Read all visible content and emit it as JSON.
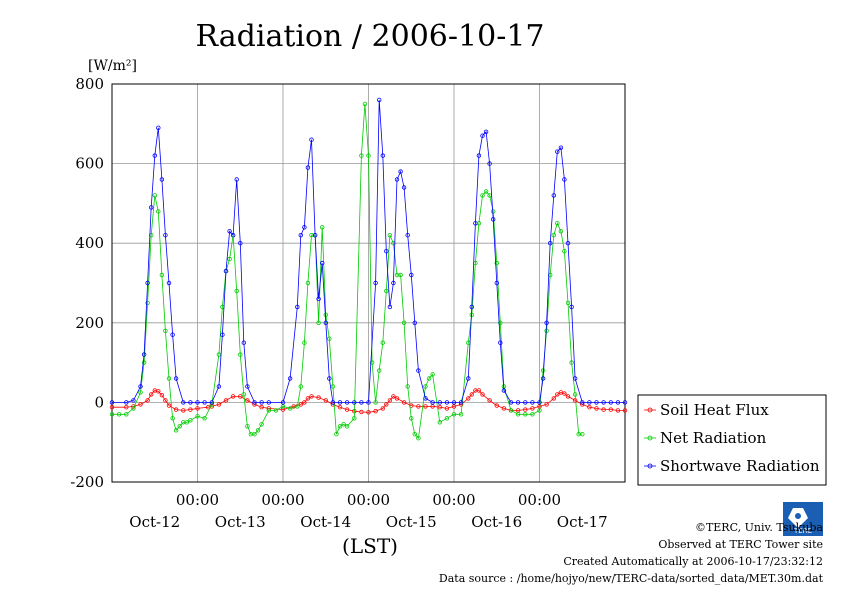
{
  "title": "Radiation / 2006-10-17",
  "unit_label": "[W/m²]",
  "xlabel": "(LST)",
  "footer": {
    "copyright": "©TERC, Univ. Tsukuba",
    "observed": "Observed at TERC Tower site",
    "created": "Created Automatically at 2006-10-17/23:32:12",
    "source": "Data source : /home/hojyo/new/TERC-data/sorted_data/MET.30m.dat"
  },
  "logo_text": "TERC",
  "chart_data": {
    "type": "line",
    "title": "Radiation / 2006-10-17",
    "ylabel": "[W/m²]",
    "xlabel": "(LST)",
    "ylim": [
      -200,
      800
    ],
    "yticks": [
      -200,
      0,
      200,
      400,
      600,
      800
    ],
    "ytick_labels": [
      "-200",
      "0",
      "200",
      "400",
      "600",
      "800"
    ],
    "xlim_hours": [
      0,
      144
    ],
    "xtick_labels": [
      "00:00",
      "00:00",
      "00:00",
      "00:00",
      "00:00"
    ],
    "xday_labels": [
      "Oct-12",
      "Oct-13",
      "Oct-14",
      "Oct-15",
      "Oct-16",
      "Oct-17"
    ],
    "grid": true,
    "legend_position": "right",
    "series": [
      {
        "name": "Soil Heat Flux",
        "color": "#ff0000",
        "x": [
          0,
          4,
          6,
          8,
          10,
          11,
          12,
          13,
          14,
          15,
          16,
          18,
          20,
          22,
          24,
          27,
          28,
          30,
          32,
          34,
          36,
          38,
          40,
          42,
          44,
          48,
          51,
          53,
          54,
          55,
          56,
          58,
          60,
          62,
          64,
          66,
          68,
          70,
          72,
          74,
          76,
          77,
          78,
          79,
          80,
          82,
          84,
          86,
          88,
          90,
          92,
          94,
          96,
          98,
          100,
          101,
          102,
          103,
          104,
          106,
          108,
          110,
          112,
          114,
          116,
          118,
          120,
          122,
          124,
          125,
          126,
          127,
          128,
          130,
          132,
          134,
          136,
          138,
          140,
          142,
          144
        ],
        "values": [
          -12,
          -12,
          -10,
          -5,
          5,
          20,
          30,
          28,
          18,
          5,
          -8,
          -18,
          -20,
          -18,
          -15,
          -12,
          -10,
          -5,
          5,
          15,
          15,
          5,
          -5,
          -12,
          -15,
          -18,
          -10,
          -5,
          0,
          10,
          15,
          12,
          5,
          -5,
          -12,
          -18,
          -22,
          -24,
          -25,
          -22,
          -15,
          -5,
          5,
          15,
          10,
          0,
          -8,
          -10,
          -10,
          -10,
          -12,
          -15,
          -10,
          -5,
          10,
          20,
          30,
          30,
          20,
          5,
          -8,
          -15,
          -20,
          -20,
          -18,
          -15,
          -10,
          -5,
          10,
          20,
          25,
          22,
          15,
          5,
          -5,
          -12,
          -15,
          -18,
          -18,
          -20,
          -20
        ]
      },
      {
        "name": "Net Radiation",
        "color": "#00cc00",
        "x": [
          0,
          2,
          4,
          6,
          8,
          9,
          10,
          11,
          12,
          13,
          14,
          15,
          16,
          17,
          18,
          19,
          20,
          21,
          22,
          24,
          26,
          28,
          30,
          31,
          32,
          33,
          34,
          35,
          36,
          37,
          38,
          39,
          40,
          41,
          42,
          44,
          46,
          48,
          50,
          52,
          53,
          54,
          55,
          56,
          57,
          58,
          59,
          60,
          61,
          62,
          63,
          64,
          65,
          66,
          68,
          70,
          71,
          72,
          73,
          74,
          75,
          76,
          77,
          78,
          79,
          80,
          81,
          82,
          83,
          84,
          85,
          86,
          88,
          89,
          90,
          92,
          94,
          96,
          98,
          100,
          101,
          102,
          103,
          104,
          105,
          106,
          107,
          108,
          109,
          110,
          112,
          114,
          116,
          118,
          120,
          121,
          122,
          123,
          124,
          125,
          126,
          127,
          128,
          129,
          130,
          131,
          132
        ],
        "values": [
          -30,
          -30,
          -30,
          -15,
          25,
          100,
          250,
          420,
          520,
          480,
          320,
          180,
          60,
          -40,
          -70,
          -60,
          -50,
          -50,
          -45,
          -35,
          -40,
          -5,
          120,
          240,
          330,
          360,
          420,
          280,
          120,
          20,
          -60,
          -80,
          -80,
          -70,
          -55,
          -20,
          -20,
          -10,
          -15,
          -10,
          40,
          150,
          300,
          420,
          420,
          200,
          440,
          220,
          160,
          40,
          -80,
          -60,
          -55,
          -60,
          -40,
          620,
          750,
          620,
          100,
          0,
          80,
          150,
          280,
          420,
          400,
          320,
          320,
          200,
          40,
          -40,
          -80,
          -90,
          40,
          60,
          70,
          -50,
          -40,
          -30,
          -30,
          150,
          220,
          350,
          450,
          520,
          530,
          520,
          480,
          350,
          200,
          40,
          -20,
          -30,
          -30,
          -30,
          -20,
          80,
          180,
          320,
          420,
          450,
          430,
          380,
          250,
          100,
          20,
          -80,
          -80
        ]
      },
      {
        "name": "Shortwave Radiation",
        "color": "#0000ff",
        "x": [
          0,
          4,
          6,
          8,
          9,
          10,
          11,
          12,
          13,
          14,
          15,
          16,
          17,
          18,
          20,
          22,
          24,
          26,
          28,
          30,
          31,
          32,
          33,
          34,
          35,
          36,
          37,
          38,
          40,
          42,
          44,
          48,
          50,
          52,
          53,
          54,
          55,
          56,
          57,
          58,
          59,
          60,
          61,
          62,
          64,
          66,
          68,
          70,
          72,
          74,
          75,
          76,
          77,
          78,
          79,
          80,
          81,
          82,
          83,
          84,
          85,
          86,
          88,
          90,
          92,
          94,
          96,
          98,
          100,
          101,
          102,
          103,
          104,
          105,
          106,
          107,
          108,
          109,
          110,
          112,
          114,
          116,
          118,
          120,
          121,
          122,
          123,
          124,
          125,
          126,
          127,
          128,
          129,
          130,
          132,
          134,
          136,
          138,
          140,
          142,
          144
        ],
        "values": [
          0,
          0,
          5,
          40,
          120,
          300,
          490,
          620,
          690,
          560,
          420,
          300,
          170,
          60,
          0,
          0,
          0,
          0,
          0,
          40,
          170,
          330,
          430,
          420,
          560,
          400,
          150,
          40,
          0,
          0,
          0,
          0,
          60,
          240,
          420,
          440,
          590,
          660,
          420,
          260,
          350,
          200,
          60,
          0,
          0,
          0,
          0,
          0,
          0,
          300,
          760,
          620,
          380,
          240,
          300,
          560,
          580,
          540,
          420,
          320,
          200,
          80,
          10,
          0,
          0,
          0,
          0,
          0,
          60,
          240,
          450,
          620,
          670,
          680,
          600,
          460,
          300,
          150,
          30,
          0,
          0,
          0,
          0,
          0,
          60,
          200,
          400,
          520,
          630,
          640,
          560,
          400,
          240,
          60,
          0,
          0,
          0,
          0,
          0,
          0,
          0
        ]
      }
    ]
  }
}
